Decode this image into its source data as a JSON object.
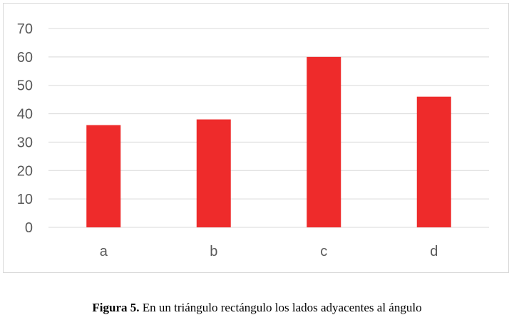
{
  "chart_data": {
    "type": "bar",
    "title": "",
    "xlabel": "",
    "ylabel": "",
    "categories": [
      "a",
      "b",
      "c",
      "d"
    ],
    "values": [
      36,
      38,
      60,
      46
    ],
    "ylim": [
      0,
      70
    ],
    "yticks": [
      0,
      10,
      20,
      30,
      40,
      50,
      60,
      70
    ],
    "ytick_labels": [
      "0",
      "10",
      "20",
      "30",
      "40",
      "50",
      "60",
      "70"
    ],
    "grid": true,
    "legend": "none",
    "bar_color": "#ee2b2b",
    "grid_color": "#d9d9d9"
  },
  "caption": {
    "label": "Figura 5.",
    "text": " En un triángulo rectángulo los lados adyacentes al ángulo"
  }
}
